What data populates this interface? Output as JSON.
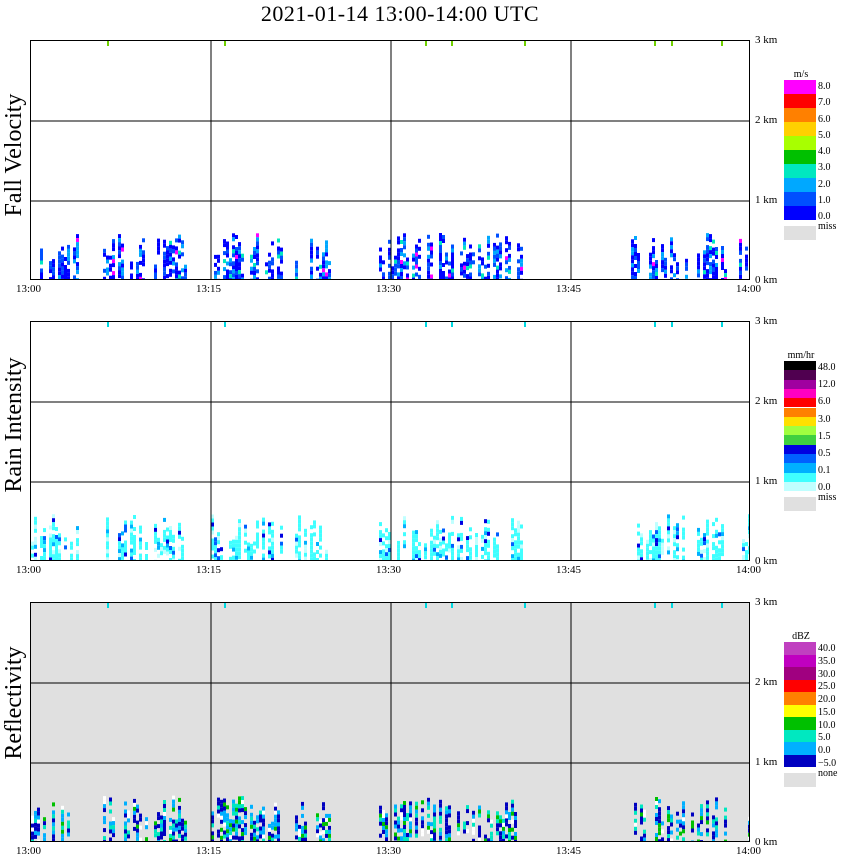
{
  "title": "2021-01-14   13:00-14:00 UTC",
  "x_ticks": [
    "13:00",
    "13:15",
    "13:30",
    "13:45",
    "14:00"
  ],
  "height_ticks": [
    "3 km",
    "2 km",
    "1 km",
    "0 km"
  ],
  "panels": [
    {
      "label": "Fall Velocity",
      "legend_unit": "m/s",
      "legend_values": [
        "8.0",
        "7.0",
        "6.0",
        "5.0",
        "4.0",
        "3.0",
        "2.0",
        "1.0",
        "0.0"
      ],
      "legend_missing": "miss",
      "colors": [
        "#ff00ff",
        "#ff0000",
        "#ff8000",
        "#ffd000",
        "#a8ff00",
        "#00c000",
        "#00e8c0",
        "#00a8ff",
        "#0050ff",
        "#0000ff"
      ],
      "missing_color": "#e0e0e0"
    },
    {
      "label": "Rain Intensity",
      "legend_unit": "mm/hr",
      "legend_values": [
        "48.0",
        "12.0",
        "6.0",
        "3.0",
        "1.5",
        "0.5",
        "0.1",
        "0.0"
      ],
      "legend_missing": "miss",
      "colors": [
        "#000000",
        "#500050",
        "#a000a0",
        "#ff00c0",
        "#ff0000",
        "#ff8000",
        "#ffe000",
        "#a0ff40",
        "#40d040",
        "#0000e0",
        "#0060ff",
        "#00b0ff",
        "#40ffff",
        "#c0ffff"
      ],
      "missing_color": "#e0e0e0"
    },
    {
      "label": "Reflectivity",
      "legend_unit": "dBZ",
      "legend_values": [
        "40.0",
        "35.0",
        "30.0",
        "25.0",
        "20.0",
        "15.0",
        "10.0",
        "5.0",
        "0.0",
        "−5.0"
      ],
      "legend_missing": "none",
      "colors": [
        "#c040c0",
        "#c000c0",
        "#a00080",
        "#ff0000",
        "#ff8000",
        "#ffff00",
        "#00c000",
        "#00e8c0",
        "#00b0ff",
        "#0000c0"
      ],
      "missing_color": "#e0e0e0"
    }
  ],
  "chart_data": [
    {
      "type": "heatmap",
      "title": "Fall Velocity",
      "xlabel": "",
      "ylabel": "Fall Velocity",
      "x_range": [
        "13:00",
        "14:00"
      ],
      "y_range_km": [
        0,
        3
      ],
      "grid": true,
      "colorbar_unit": "m/s",
      "colorbar_range": [
        0,
        8
      ],
      "observed_intervals_min": [
        [
          0,
          4
        ],
        [
          6,
          13
        ],
        [
          15,
          21
        ],
        [
          22,
          25
        ],
        [
          29,
          41
        ],
        [
          50,
          58
        ],
        [
          59,
          60
        ]
      ],
      "observed_top_km": 0.6,
      "dominant_value": 1.5
    },
    {
      "type": "heatmap",
      "title": "Rain Intensity",
      "xlabel": "",
      "ylabel": "Rain Intensity",
      "x_range": [
        "13:00",
        "14:00"
      ],
      "y_range_km": [
        0,
        3
      ],
      "grid": true,
      "colorbar_unit": "mm/hr",
      "colorbar_range": [
        0,
        48
      ],
      "observed_intervals_min": [
        [
          0,
          4
        ],
        [
          6,
          13
        ],
        [
          15,
          21
        ],
        [
          22,
          25
        ],
        [
          29,
          41
        ],
        [
          50,
          58
        ],
        [
          59,
          60
        ]
      ],
      "observed_top_km": 0.6,
      "dominant_value": 0.1
    },
    {
      "type": "heatmap",
      "title": "Reflectivity",
      "xlabel": "",
      "ylabel": "Reflectivity",
      "x_range": [
        "13:00",
        "14:00"
      ],
      "y_range_km": [
        0,
        3
      ],
      "grid": true,
      "colorbar_unit": "dBZ",
      "colorbar_range": [
        -5,
        40
      ],
      "observed_intervals_min": [
        [
          0,
          4
        ],
        [
          6,
          13
        ],
        [
          15,
          21
        ],
        [
          22,
          25
        ],
        [
          29,
          41
        ],
        [
          50,
          58
        ],
        [
          59,
          60
        ]
      ],
      "observed_top_km": 0.6,
      "dominant_value": 5
    }
  ]
}
